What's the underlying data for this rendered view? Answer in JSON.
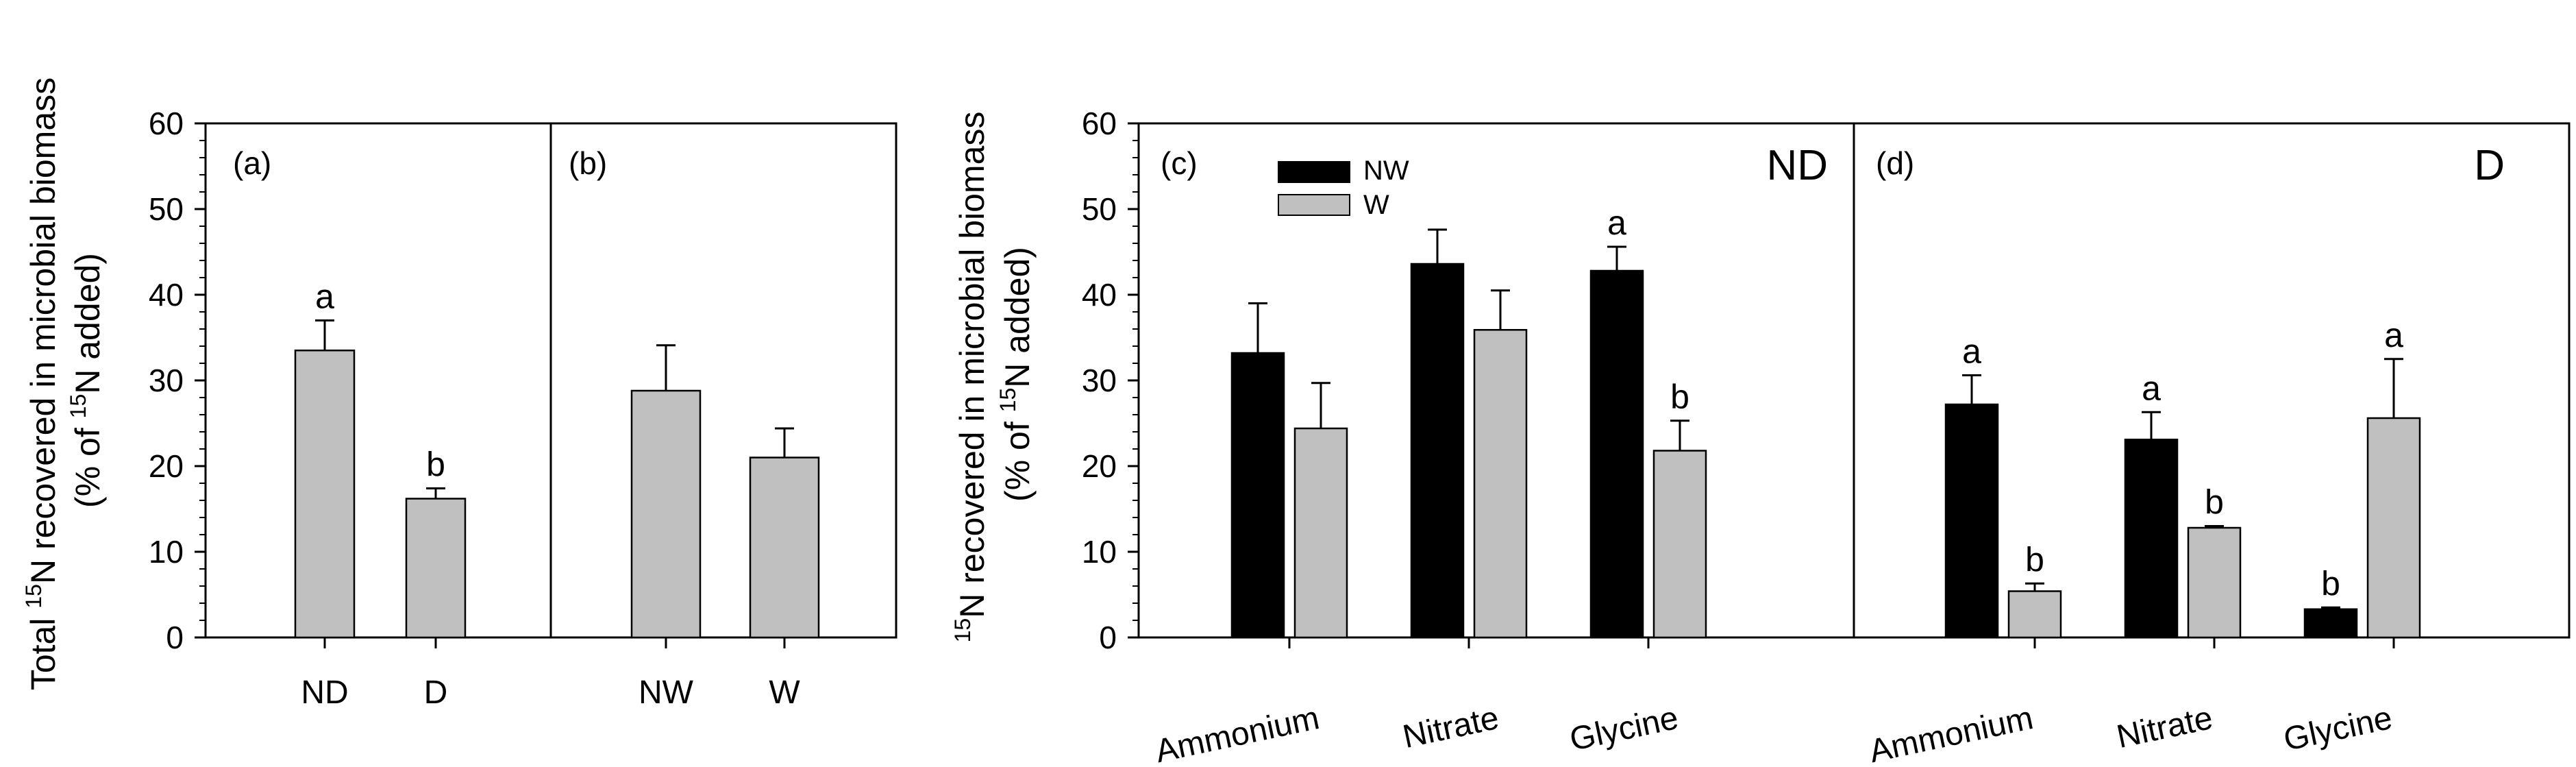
{
  "chart_data": [
    {
      "id": "a",
      "type": "bar",
      "panel_label": "(a)",
      "ylabel_part1": "Total ",
      "ylabel_sup": "15",
      "ylabel_part2": "N recovered in microbial biomass",
      "ylabel2_part1": "(% of ",
      "ylabel2_sup": "15",
      "ylabel2_part2": "N added)",
      "ylim": [
        0,
        60
      ],
      "yticks": [
        "0",
        "10",
        "20",
        "30",
        "40",
        "50",
        "60"
      ],
      "categories": [
        "ND",
        "D"
      ],
      "series": [
        {
          "name": "",
          "color": "#c0c0c0",
          "values": [
            33.5,
            16.2
          ],
          "errors": [
            3.5,
            1.2
          ]
        }
      ],
      "letters": [
        [
          "a",
          "b"
        ]
      ]
    },
    {
      "id": "b",
      "type": "bar",
      "panel_label": "(b)",
      "ylim": [
        0,
        60
      ],
      "categories": [
        "NW",
        "W"
      ],
      "series": [
        {
          "name": "",
          "color": "#c0c0c0",
          "values": [
            28.8,
            21.0
          ],
          "errors": [
            5.3,
            3.4
          ]
        }
      ],
      "letters": [
        [
          "",
          ""
        ]
      ]
    },
    {
      "id": "c",
      "type": "bar",
      "panel_label": "(c)",
      "corner_label": "ND",
      "ylabel_sup": "15",
      "ylabel_part2": "N recovered in microbial biomass",
      "ylabel2_part1": "(% of ",
      "ylabel2_sup": "15",
      "ylabel2_part2": "N added)",
      "ylim": [
        0,
        60
      ],
      "yticks": [
        "0",
        "10",
        "20",
        "30",
        "40",
        "50",
        "60"
      ],
      "categories": [
        "Ammonium",
        "Nitrate",
        "Glycine"
      ],
      "series": [
        {
          "name": "NW",
          "color": "#000000",
          "values": [
            33.2,
            43.6,
            42.8
          ],
          "errors": [
            5.8,
            4.0,
            2.8
          ]
        },
        {
          "name": "W",
          "color": "#c0c0c0",
          "values": [
            24.4,
            35.9,
            21.8
          ],
          "errors": [
            5.3,
            4.6,
            3.5
          ]
        }
      ],
      "letters": [
        [
          "",
          "",
          "a"
        ],
        [
          "",
          "",
          "b"
        ]
      ],
      "legend": {
        "items": [
          "NW",
          "W"
        ],
        "position": "top-left"
      }
    },
    {
      "id": "d",
      "type": "bar",
      "panel_label": "(d)",
      "corner_label": "D",
      "ylim": [
        0,
        60
      ],
      "categories": [
        "Ammonium",
        "Nitrate",
        "Glycine"
      ],
      "series": [
        {
          "name": "NW",
          "color": "#000000",
          "values": [
            27.2,
            23.1,
            3.3
          ],
          "errors": [
            3.4,
            3.2,
            0.2
          ]
        },
        {
          "name": "W",
          "color": "#c0c0c0",
          "values": [
            5.4,
            12.8,
            25.6
          ],
          "errors": [
            0.9,
            0.2,
            6.9
          ]
        }
      ],
      "letters": [
        [
          "a",
          "a",
          "b"
        ],
        [
          "b",
          "b",
          "a"
        ]
      ]
    }
  ]
}
